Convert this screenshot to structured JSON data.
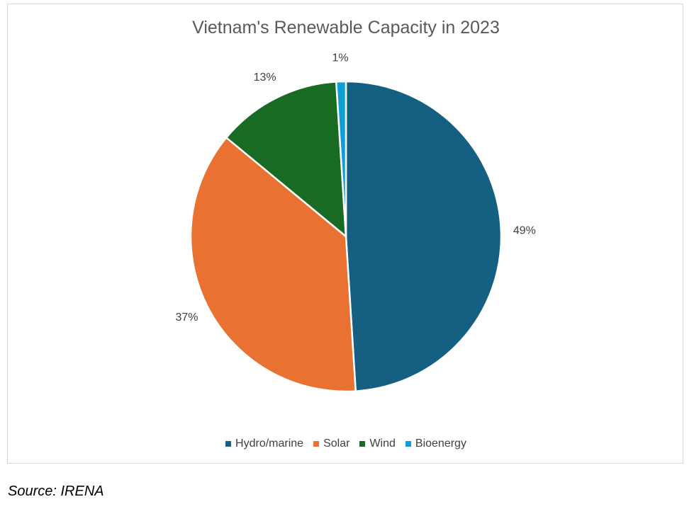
{
  "chart_data": {
    "type": "pie",
    "title": "Vietnam's Renewable Capacity in 2023",
    "categories": [
      "Hydro/marine",
      "Solar",
      "Wind",
      "Bioenergy"
    ],
    "values": [
      49,
      37,
      13,
      1
    ],
    "labels": [
      "49%",
      "37%",
      "13%",
      "1%"
    ],
    "colors": [
      "#156082",
      "#E97132",
      "#196B24",
      "#0F9ED5"
    ],
    "legend": "bottom",
    "start_angle": "12 o'clock, clockwise"
  },
  "source": "Source: IRENA"
}
